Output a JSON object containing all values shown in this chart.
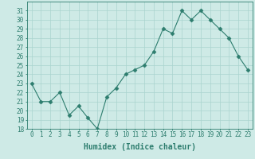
{
  "x": [
    0,
    1,
    2,
    3,
    4,
    5,
    6,
    7,
    8,
    9,
    10,
    11,
    12,
    13,
    14,
    15,
    16,
    17,
    18,
    19,
    20,
    21,
    22,
    23
  ],
  "y": [
    23,
    21,
    21,
    22,
    19.5,
    20.5,
    19.2,
    18,
    21.5,
    22.5,
    24,
    24.5,
    25,
    26.5,
    29,
    28.5,
    31,
    30,
    31,
    30,
    29,
    28,
    26,
    24.5
  ],
  "line_color": "#2d7d6e",
  "marker": "D",
  "marker_size": 2.5,
  "bg_color": "#ceeae6",
  "grid_color": "#aad4ce",
  "xlabel": "Humidex (Indice chaleur)",
  "ylim": [
    18,
    32
  ],
  "yticks": [
    18,
    19,
    20,
    21,
    22,
    23,
    24,
    25,
    26,
    27,
    28,
    29,
    30,
    31
  ],
  "xlim": [
    -0.5,
    23.5
  ],
  "xticks": [
    0,
    1,
    2,
    3,
    4,
    5,
    6,
    7,
    8,
    9,
    10,
    11,
    12,
    13,
    14,
    15,
    16,
    17,
    18,
    19,
    20,
    21,
    22,
    23
  ],
  "tick_label_fontsize": 5.5,
  "xlabel_fontsize": 7,
  "axis_color": "#2d7d6e",
  "spine_color": "#2d7d6e"
}
